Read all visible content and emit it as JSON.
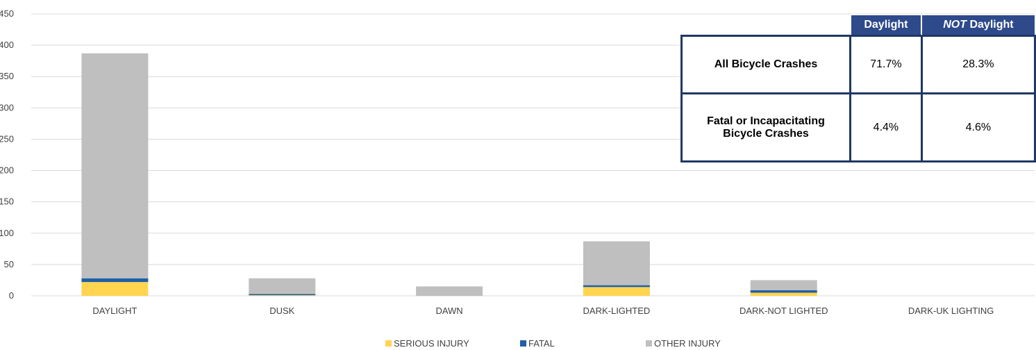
{
  "chart_data": {
    "type": "bar",
    "stacked": true,
    "categories": [
      "DAYLIGHT",
      "DUSK",
      "DAWN",
      "DARK-LIGHTED",
      "DARK-NOT LIGHTED",
      "DARK-UK LIGHTING"
    ],
    "series": [
      {
        "name": "SERIOUS INJURY",
        "color": "#ffd54f",
        "values": [
          22,
          1,
          0,
          14,
          5,
          0
        ]
      },
      {
        "name": "FATAL",
        "color": "#1f5fa8",
        "values": [
          6,
          2,
          0,
          3,
          4,
          0
        ]
      },
      {
        "name": "OTHER INJURY",
        "color": "#bfbfbf",
        "values": [
          359,
          25,
          15,
          70,
          16,
          0
        ]
      }
    ],
    "yticks": [
      0,
      50,
      100,
      150,
      200,
      250,
      300,
      350,
      400,
      450
    ],
    "ylim": [
      0,
      450
    ],
    "grid": true,
    "legend_position": "bottom"
  },
  "summary_table": {
    "headers": {
      "col1": "Daylight",
      "col2_emphasis": "NOT",
      "col2_rest": " Daylight"
    },
    "rows": [
      {
        "label": "All Bicycle Crashes",
        "daylight": "71.7%",
        "not_daylight": "28.3%"
      },
      {
        "label": "Fatal or Incapacitating Bicycle Crashes",
        "daylight": "4.4%",
        "not_daylight": "4.6%"
      }
    ]
  }
}
